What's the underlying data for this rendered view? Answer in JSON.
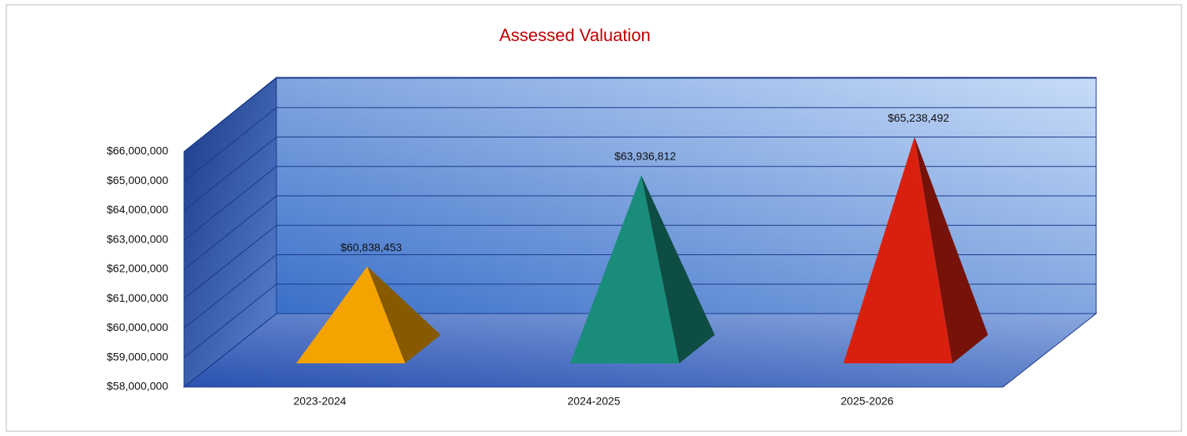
{
  "chart_data": {
    "type": "pyramid",
    "title": "Assessed Valuation",
    "categories": [
      "2023-2024",
      "2024-2025",
      "2025-2026"
    ],
    "values": [
      60838453,
      63936812,
      65238492
    ],
    "value_labels": [
      "$60,838,453",
      "$63,936,812",
      "$65,238,492"
    ],
    "colors": [
      "#f5a300",
      "#1a8c7a",
      "#d9200f"
    ],
    "ylim": [
      58000000,
      66000000
    ],
    "yticks": [
      {
        "value": 58000000,
        "label": "$58,000,000"
      },
      {
        "value": 59000000,
        "label": "$59,000,000"
      },
      {
        "value": 60000000,
        "label": "$60,000,000"
      },
      {
        "value": 61000000,
        "label": "$61,000,000"
      },
      {
        "value": 62000000,
        "label": "$62,000,000"
      },
      {
        "value": 63000000,
        "label": "$63,000,000"
      },
      {
        "value": 64000000,
        "label": "$64,000,000"
      },
      {
        "value": 65000000,
        "label": "$65,000,000"
      },
      {
        "value": 66000000,
        "label": "$66,000,000"
      }
    ],
    "grid": true
  }
}
